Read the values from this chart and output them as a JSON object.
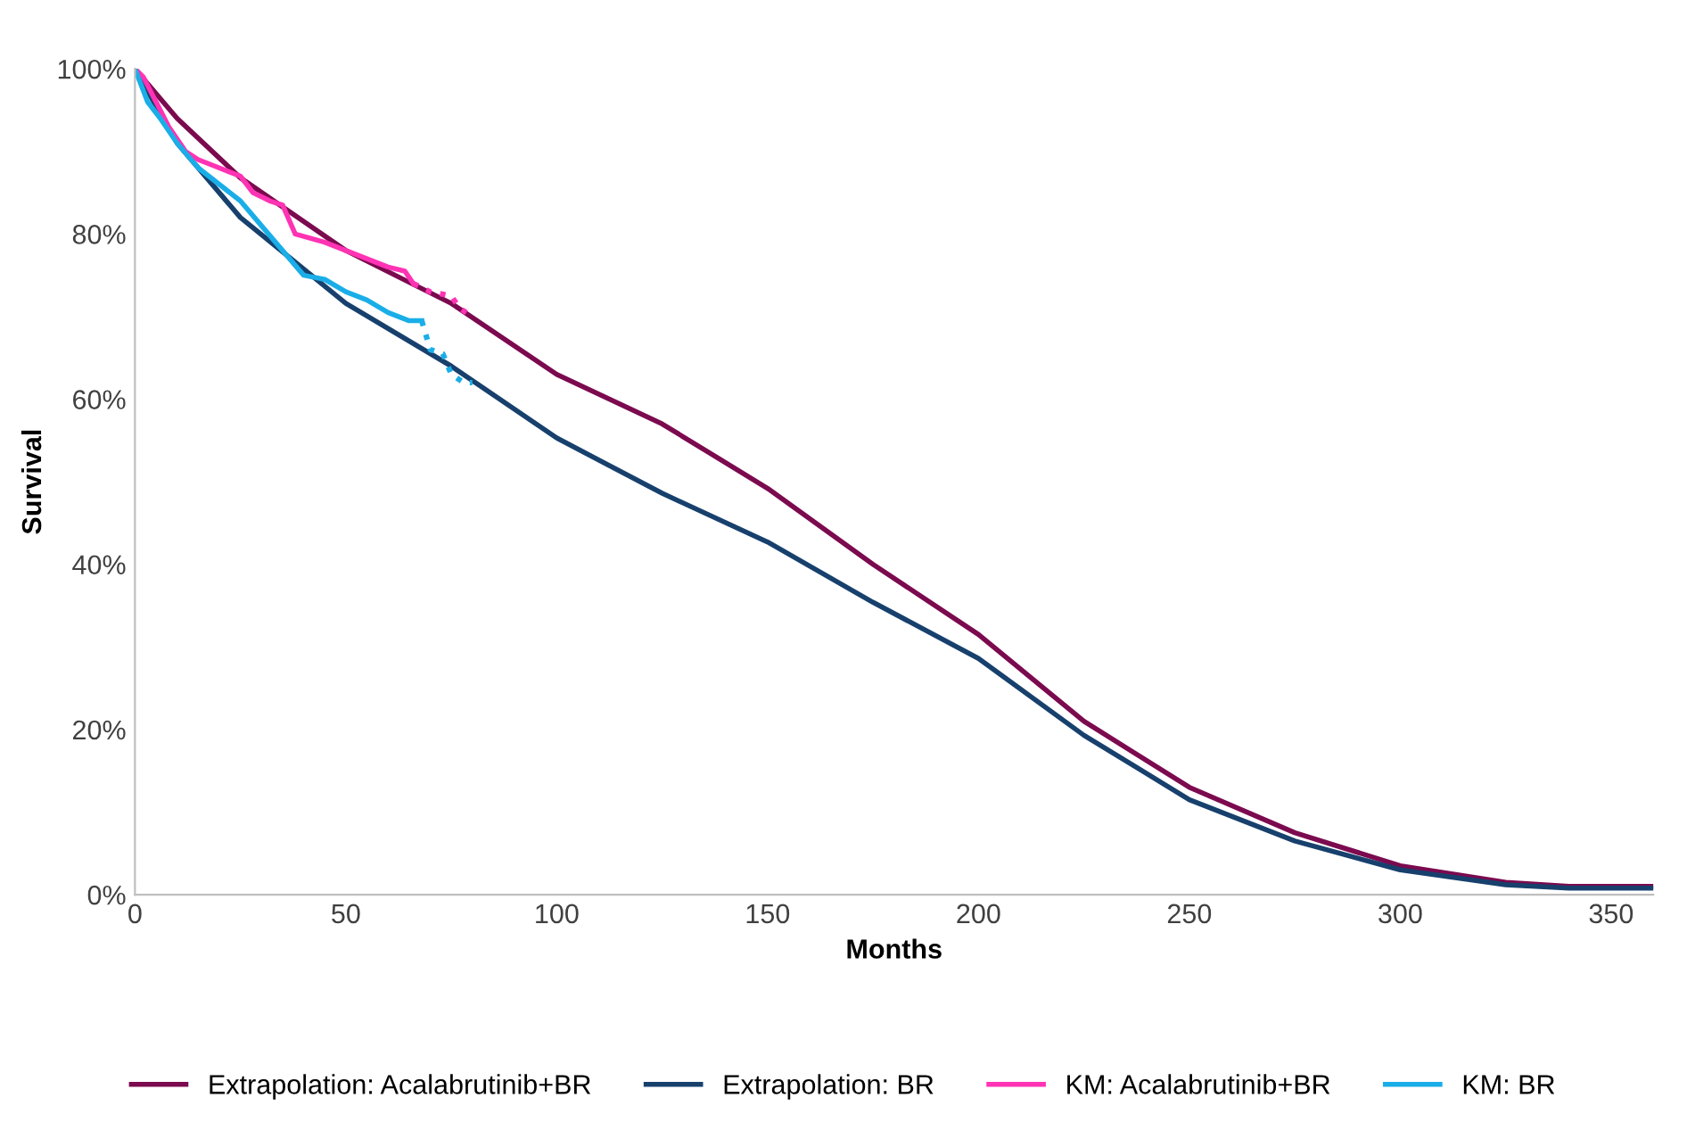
{
  "chart_data": {
    "type": "line",
    "xlabel": "Months",
    "ylabel": "Survival",
    "xlim": [
      0,
      360
    ],
    "ylim": [
      0,
      100
    ],
    "xticks": [
      0,
      50,
      100,
      150,
      200,
      250,
      300,
      350
    ],
    "yticks": [
      {
        "value": 0,
        "label": "0%"
      },
      {
        "value": 20,
        "label": "20%"
      },
      {
        "value": 40,
        "label": "40%"
      },
      {
        "value": 60,
        "label": "60%"
      },
      {
        "value": 80,
        "label": "80%"
      },
      {
        "value": 100,
        "label": "100%"
      }
    ],
    "grid": false,
    "legend": "bottom",
    "marker": "none",
    "series": [
      {
        "name": "Extrapolation: Acalabrutinib+BR",
        "color": "#7b0a4f",
        "line_style": "solid",
        "x": [
          0,
          10,
          25,
          50,
          75,
          100,
          125,
          150,
          175,
          200,
          225,
          250,
          275,
          300,
          325,
          340,
          360
        ],
        "values": [
          100,
          94,
          86.8,
          78,
          71.6,
          63,
          57,
          49.2,
          40,
          31.5,
          21,
          13,
          7.5,
          3.5,
          1.5,
          1,
          1
        ]
      },
      {
        "name": "Extrapolation: BR",
        "color": "#17406d",
        "line_style": "solid",
        "x": [
          0,
          10,
          25,
          50,
          75,
          100,
          125,
          150,
          175,
          200,
          225,
          250,
          275,
          300,
          325,
          340,
          360
        ],
        "values": [
          100,
          91,
          82,
          71.6,
          64,
          55.3,
          48.6,
          42.7,
          35.4,
          28.6,
          19.3,
          11.5,
          6.5,
          3,
          1.2,
          0.8,
          0.8
        ]
      },
      {
        "name": "KM: Acalabrutinib+BR",
        "color": "#ff33b4",
        "line_style": "solid",
        "x": [
          0,
          2,
          5,
          8,
          12,
          15,
          20,
          25,
          28,
          32,
          35,
          38,
          45,
          50,
          55,
          60,
          64,
          66
        ],
        "values": [
          100,
          99,
          96,
          93,
          90,
          89,
          88,
          87,
          85,
          84,
          83.5,
          80,
          79,
          78,
          77,
          76,
          75.5,
          74
        ]
      },
      {
        "color": "#ff33b4",
        "line_style": "dotted",
        "x": [
          66,
          70,
          75,
          77,
          80
        ],
        "values": [
          74,
          73,
          72.5,
          71,
          70
        ]
      },
      {
        "name": "KM: BR",
        "color": "#1aaee8",
        "line_style": "solid",
        "x": [
          0,
          3,
          6,
          10,
          15,
          20,
          25,
          30,
          35,
          40,
          45,
          50,
          55,
          60,
          65,
          68
        ],
        "values": [
          100,
          96,
          94,
          91,
          88,
          86,
          84,
          81,
          78,
          75,
          74.5,
          73,
          72,
          70.5,
          69.5,
          69.5
        ]
      },
      {
        "color": "#1aaee8",
        "line_style": "dotted",
        "x": [
          68,
          70,
          73,
          75,
          78,
          80
        ],
        "values": [
          69.5,
          66,
          65.5,
          63,
          62,
          62
        ]
      }
    ]
  }
}
